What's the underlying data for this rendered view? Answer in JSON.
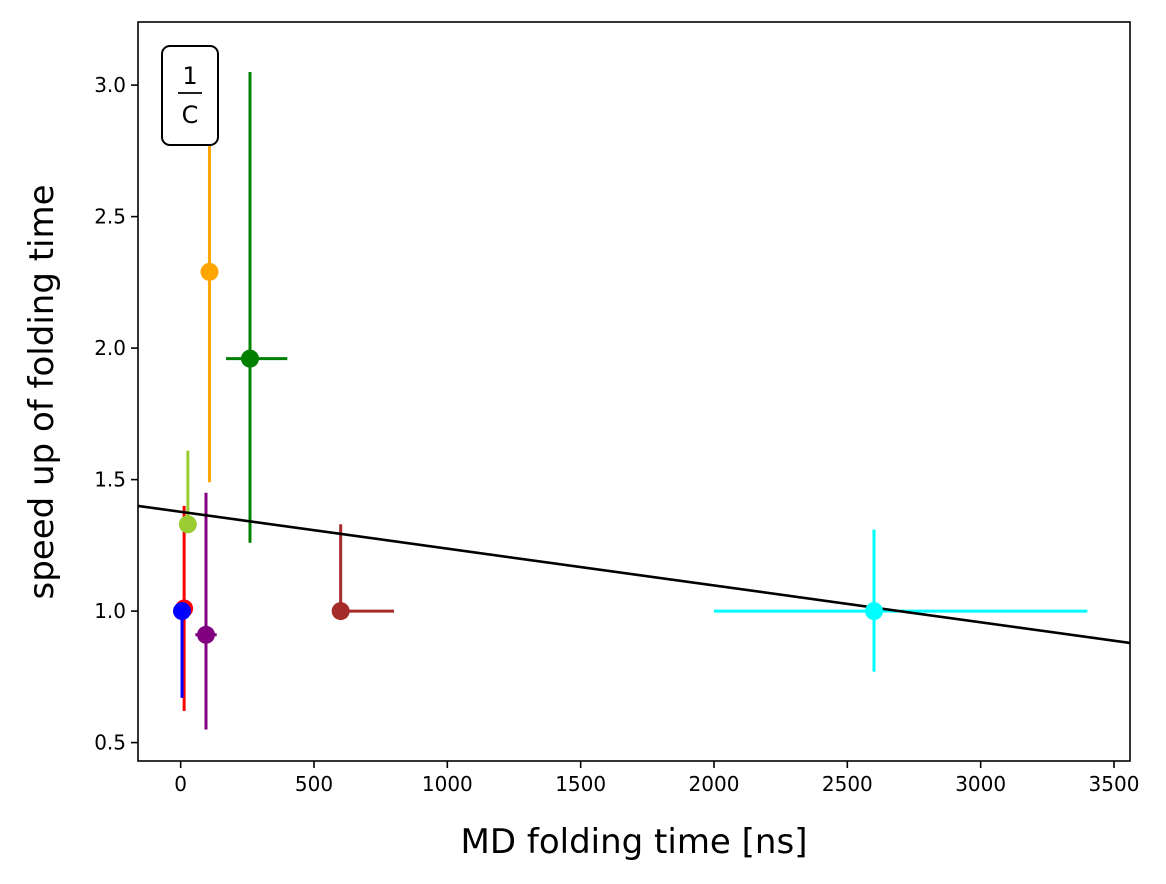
{
  "chart_data": {
    "type": "scatter",
    "xlabel": "MD folding time [ns]",
    "ylabel": "speed up of folding time",
    "xlim": [
      -160,
      3560
    ],
    "ylim": [
      0.43,
      3.24
    ],
    "xticks": [
      0,
      500,
      1000,
      1500,
      2000,
      2500,
      3000,
      3500
    ],
    "yticks": [
      0.5,
      1.0,
      1.5,
      2.0,
      2.5,
      3.0
    ],
    "xtick_labels": [
      "0",
      "500",
      "1000",
      "1500",
      "2000",
      "2500",
      "3000",
      "3500"
    ],
    "ytick_labels": [
      "0.5",
      "1.0",
      "1.5",
      "2.0",
      "2.5",
      "3.0"
    ],
    "legend_box": {
      "numerator": "1",
      "denominator": "C",
      "placement": "top-left"
    },
    "grid": false,
    "points": [
      {
        "color": "#ff0000",
        "x": 13,
        "y": 1.01,
        "yerr": [
          0.39,
          0.39
        ],
        "xerr": [
          0,
          0
        ]
      },
      {
        "color": "#0000ff",
        "x": 5,
        "y": 1.0,
        "yerr": [
          0.33,
          0.0
        ],
        "xerr": [
          0,
          0
        ]
      },
      {
        "color": "#9acd32",
        "x": 27,
        "y": 1.33,
        "yerr": [
          0.0,
          0.28
        ],
        "xerr": [
          0,
          0
        ]
      },
      {
        "color": "#800080",
        "x": 95,
        "y": 0.91,
        "yerr": [
          0.36,
          0.54
        ],
        "xerr": [
          40,
          40
        ]
      },
      {
        "color": "#ffa500",
        "x": 108,
        "y": 2.29,
        "yerr": [
          0.8,
          0.5
        ],
        "xerr": [
          0,
          0
        ]
      },
      {
        "color": "#008000",
        "x": 260,
        "y": 1.96,
        "yerr": [
          0.7,
          1.09
        ],
        "xerr": [
          90,
          140
        ]
      },
      {
        "color": "#a52a2a",
        "x": 600,
        "y": 1.0,
        "yerr": [
          0.0,
          0.33
        ],
        "xerr": [
          0,
          200
        ]
      },
      {
        "color": "#00ffff",
        "x": 2600,
        "y": 1.0,
        "yerr": [
          0.23,
          0.31
        ],
        "xerr": [
          600,
          800
        ]
      }
    ],
    "fit_line": {
      "color": "#000000",
      "x": [
        -160,
        3560
      ],
      "y": [
        1.4,
        0.879
      ]
    }
  }
}
